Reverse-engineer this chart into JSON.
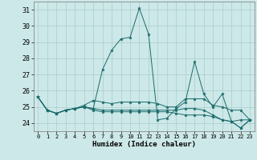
{
  "xlabel": "Humidex (Indice chaleur)",
  "background_color": "#cde8e8",
  "grid_color": "#aacccc",
  "line_color": "#1a6b6b",
  "x_ticks": [
    0,
    1,
    2,
    3,
    4,
    5,
    6,
    7,
    8,
    9,
    10,
    11,
    12,
    13,
    14,
    15,
    16,
    17,
    18,
    19,
    20,
    21,
    22,
    23
  ],
  "ylim": [
    23.5,
    31.5
  ],
  "yticks": [
    24,
    25,
    26,
    27,
    28,
    29,
    30,
    31
  ],
  "series": [
    [
      25.6,
      24.8,
      24.6,
      24.8,
      24.9,
      25.0,
      24.9,
      27.3,
      28.5,
      29.2,
      29.3,
      31.1,
      29.5,
      24.2,
      24.3,
      24.9,
      25.3,
      27.8,
      25.8,
      25.0,
      25.8,
      24.1,
      24.2,
      24.2
    ],
    [
      25.6,
      24.8,
      24.6,
      24.8,
      24.9,
      25.1,
      25.4,
      25.3,
      25.2,
      25.3,
      25.3,
      25.3,
      25.3,
      25.2,
      25.0,
      25.0,
      25.5,
      25.5,
      25.5,
      25.1,
      25.0,
      24.8,
      24.8,
      24.2
    ],
    [
      25.6,
      24.8,
      24.6,
      24.8,
      24.9,
      25.0,
      24.9,
      24.8,
      24.8,
      24.8,
      24.8,
      24.8,
      24.8,
      24.8,
      24.8,
      24.8,
      24.9,
      24.9,
      24.8,
      24.5,
      24.2,
      24.1,
      23.7,
      24.2
    ],
    [
      25.6,
      24.8,
      24.6,
      24.8,
      24.9,
      25.0,
      24.8,
      24.7,
      24.7,
      24.7,
      24.7,
      24.7,
      24.7,
      24.7,
      24.7,
      24.6,
      24.5,
      24.5,
      24.5,
      24.4,
      24.2,
      24.1,
      23.7,
      24.2
    ]
  ]
}
